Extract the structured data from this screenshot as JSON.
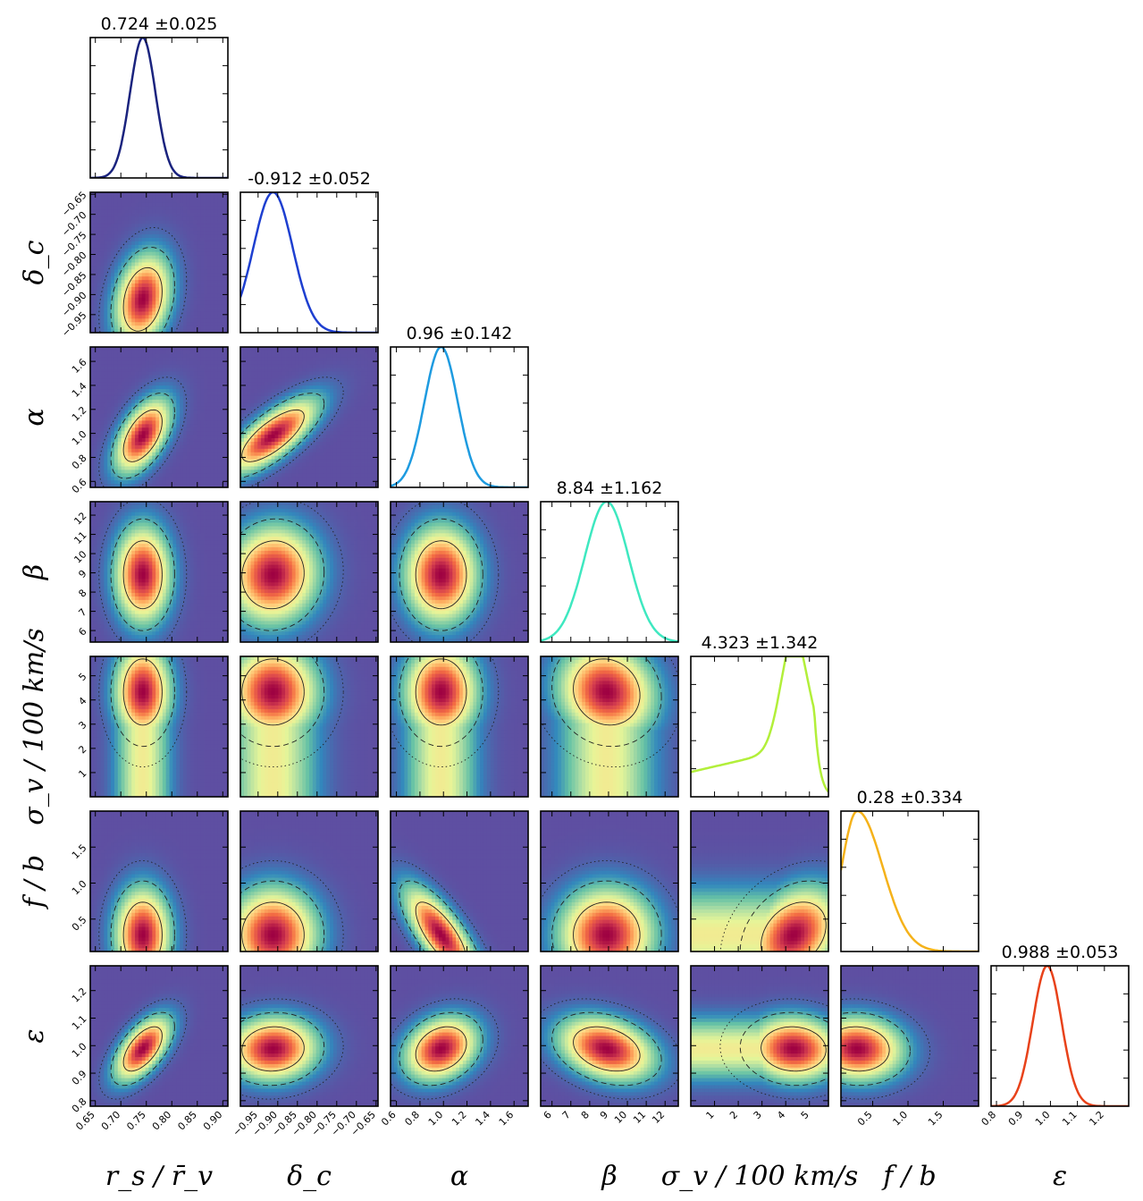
{
  "chart_data": {
    "type": "corner",
    "parameters": [
      {
        "key": "rs",
        "label": "r_s / r̄_v",
        "label_html": [
          "r",
          "s",
          "/",
          "r̄",
          "v"
        ],
        "range": [
          0.64,
          0.91
        ],
        "ticks": [
          0.65,
          0.7,
          0.75,
          0.8,
          0.85,
          0.9
        ],
        "tick_labels": [
          "0.65",
          "0.70",
          "0.75",
          "0.80",
          "0.85",
          "0.90"
        ],
        "mean": 0.724,
        "std": 0.025,
        "peak": 0.743,
        "title": "0.724 ±0.025",
        "color": "#1a237e"
      },
      {
        "key": "dc",
        "label": "δ_c",
        "range": [
          -0.995,
          -0.645
        ],
        "ticks": [
          -0.95,
          -0.9,
          -0.85,
          -0.8,
          -0.75,
          -0.7,
          -0.65
        ],
        "tick_labels": [
          "−0.95",
          "−0.90",
          "−0.85",
          "−0.80",
          "−0.75",
          "−0.70",
          "−0.65"
        ],
        "mean": -0.912,
        "std": 0.052,
        "peak": -0.912,
        "title": "-0.912 ±0.052",
        "color": "#1e3fd0"
      },
      {
        "key": "alpha",
        "label": "α",
        "range": [
          0.55,
          1.72
        ],
        "ticks": [
          0.6,
          0.8,
          1.0,
          1.2,
          1.4,
          1.6
        ],
        "tick_labels": [
          "0.6",
          "0.8",
          "1.0",
          "1.2",
          "1.4",
          "1.6"
        ],
        "mean": 0.96,
        "std": 0.142,
        "peak": 0.98,
        "title": "0.96 ±0.142",
        "color": "#1e9be0"
      },
      {
        "key": "beta",
        "label": "β",
        "range": [
          5.4,
          12.7
        ],
        "ticks": [
          6,
          7,
          8,
          9,
          10,
          11,
          12
        ],
        "tick_labels": [
          "6",
          "7",
          "8",
          "9",
          "10",
          "11",
          "12"
        ],
        "mean": 8.84,
        "std": 1.162,
        "peak": 8.9,
        "title": "8.84 ±1.162",
        "color": "#3ee8c0"
      },
      {
        "key": "sigma",
        "label": "σ_v / 100 km/s",
        "range": [
          0.0,
          5.8
        ],
        "ticks": [
          1,
          2,
          3,
          4,
          5
        ],
        "tick_labels": [
          "1",
          "2",
          "3",
          "4",
          "5"
        ],
        "mean": 4.323,
        "std": 1.342,
        "peak": 4.33,
        "title": "4.323 ±1.342",
        "color": "#b2ef3a"
      },
      {
        "key": "fb",
        "label": "f / b",
        "range": [
          0.05,
          2.0
        ],
        "ticks": [
          0.5,
          1.0,
          1.5
        ],
        "tick_labels": [
          "0.5",
          "1.0",
          "1.5"
        ],
        "mean": 0.28,
        "std": 0.334,
        "peak": 0.28,
        "title": "0.28 ±0.334",
        "color": "#f5b21a"
      },
      {
        "key": "eps",
        "label": "ε",
        "range": [
          0.78,
          1.29
        ],
        "ticks": [
          0.8,
          0.9,
          1.0,
          1.1,
          1.2
        ],
        "tick_labels": [
          "0.8",
          "0.9",
          "1.0",
          "1.1",
          "1.2"
        ],
        "mean": 0.988,
        "std": 0.053,
        "peak": 0.988,
        "title": "0.988 ±0.053",
        "color": "#e8421a"
      }
    ],
    "correlations": {
      "1-0": 0.25,
      "2-0": 0.55,
      "2-1": 0.75,
      "3-0": 0.0,
      "3-1": 0.05,
      "3-2": 0.0,
      "4-0": 0.0,
      "4-1": 0.0,
      "4-2": 0.0,
      "4-3": -0.1,
      "5-0": 0.0,
      "5-1": 0.0,
      "5-2": -0.75,
      "5-3": 0.0,
      "5-4": 0.3,
      "6-0": 0.6,
      "6-1": 0.05,
      "6-2": 0.25,
      "6-3": -0.3,
      "6-4": -0.05,
      "6-5": -0.05
    },
    "contour_levels": [
      "1-sigma solid",
      "2-sigma dashed",
      "3-sigma dotted"
    ],
    "colormap": [
      "#5e4fa2",
      "#3288bd",
      "#66c2a5",
      "#abdda4",
      "#e6f598",
      "#fee08b",
      "#fdae61",
      "#f46d43",
      "#d53e4f",
      "#9e0142"
    ]
  }
}
